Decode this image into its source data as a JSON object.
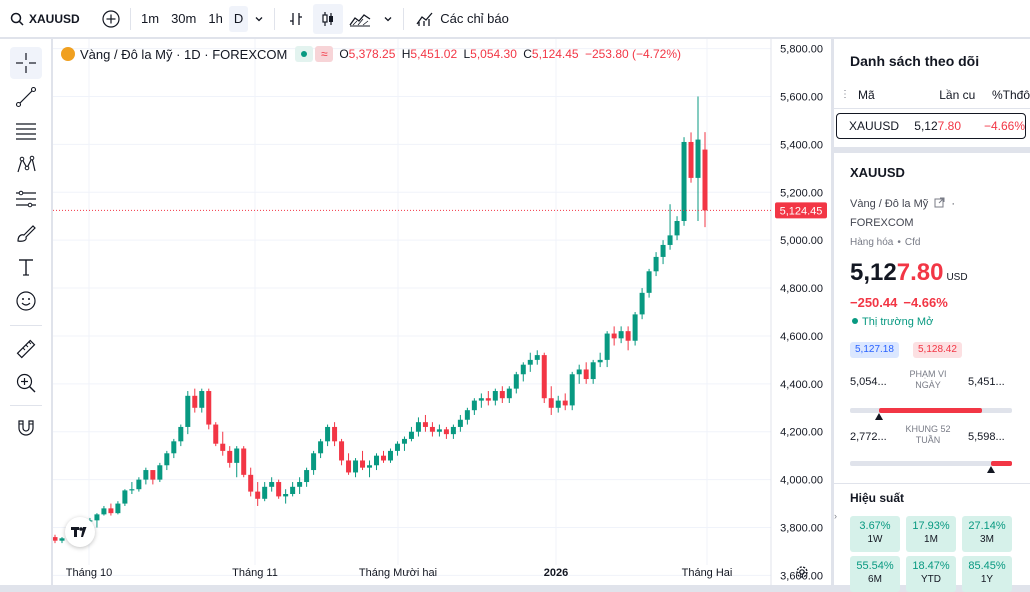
{
  "toolbar": {
    "symbol": "XAUUSD",
    "intervals": [
      "1m",
      "30m",
      "1h",
      "D"
    ],
    "active_interval": "D",
    "indicators_label": "Các chỉ báo"
  },
  "legend": {
    "title": "Vàng / Đô la Mỹ · 1D · FOREXCOM",
    "o_label": "O",
    "o": "5,378.25",
    "h_label": "H",
    "h": "5,451.02",
    "l_label": "L",
    "l": "5,054.30",
    "c_label": "C",
    "c": "5,124.45",
    "change": "−253.80 (−4.72%)"
  },
  "chart_data": {
    "type": "candlestick",
    "y_ticks": [
      "5,800.00",
      "5,600.00",
      "5,400.00",
      "5,200.00",
      "5,000.00",
      "4,800.00",
      "4,600.00",
      "4,400.00",
      "4,200.00",
      "4,000.00",
      "3,800.00",
      "3,600.00"
    ],
    "x_ticks": [
      "Tháng 10",
      "Tháng 11",
      "Tháng Mười hai",
      "2026",
      "Tháng Hai"
    ],
    "last_price_label": "5,124.45",
    "ylim": [
      3560,
      5840
    ],
    "colors": {
      "up": "#089981",
      "down": "#f23645"
    },
    "candles": [
      [
        3760,
        3770,
        3735,
        3745
      ],
      [
        3745,
        3760,
        3735,
        3755
      ],
      [
        3755,
        3790,
        3750,
        3785
      ],
      [
        3785,
        3800,
        3770,
        3790
      ],
      [
        3790,
        3830,
        3780,
        3825
      ],
      [
        3825,
        3840,
        3815,
        3830
      ],
      [
        3830,
        3860,
        3800,
        3855
      ],
      [
        3855,
        3890,
        3850,
        3880
      ],
      [
        3880,
        3900,
        3850,
        3860
      ],
      [
        3860,
        3910,
        3855,
        3900
      ],
      [
        3900,
        3960,
        3890,
        3955
      ],
      [
        3955,
        3990,
        3940,
        3960
      ],
      [
        3960,
        4010,
        3950,
        4000
      ],
      [
        4000,
        4050,
        3980,
        4040
      ],
      [
        4040,
        4020,
        3980,
        4000
      ],
      [
        4000,
        4070,
        3990,
        4060
      ],
      [
        4060,
        4120,
        4040,
        4110
      ],
      [
        4110,
        4170,
        4090,
        4160
      ],
      [
        4160,
        4230,
        4140,
        4220
      ],
      [
        4220,
        4370,
        4190,
        4350
      ],
      [
        4350,
        4380,
        4280,
        4300
      ],
      [
        4300,
        4380,
        4280,
        4370
      ],
      [
        4370,
        4380,
        4210,
        4230
      ],
      [
        4230,
        4240,
        4140,
        4150
      ],
      [
        4150,
        4200,
        4100,
        4120
      ],
      [
        4120,
        4140,
        4050,
        4070
      ],
      [
        4070,
        4140,
        4010,
        4130
      ],
      [
        4130,
        4140,
        4010,
        4020
      ],
      [
        4020,
        4050,
        3930,
        3950
      ],
      [
        3950,
        3990,
        3890,
        3920
      ],
      [
        3920,
        3990,
        3910,
        3970
      ],
      [
        3970,
        4010,
        3950,
        3990
      ],
      [
        3990,
        4000,
        3920,
        3930
      ],
      [
        3930,
        3960,
        3900,
        3940
      ],
      [
        3940,
        3990,
        3930,
        3970
      ],
      [
        3970,
        4010,
        3940,
        3990
      ],
      [
        3990,
        4050,
        3970,
        4040
      ],
      [
        4040,
        4120,
        4020,
        4110
      ],
      [
        4110,
        4170,
        4090,
        4160
      ],
      [
        4160,
        4230,
        4140,
        4220
      ],
      [
        4220,
        4240,
        4140,
        4160
      ],
      [
        4160,
        4170,
        4060,
        4080
      ],
      [
        4080,
        4110,
        4020,
        4030
      ],
      [
        4030,
        4090,
        4010,
        4080
      ],
      [
        4080,
        4120,
        4040,
        4050
      ],
      [
        4050,
        4080,
        4010,
        4060
      ],
      [
        4060,
        4110,
        4040,
        4100
      ],
      [
        4100,
        4120,
        4070,
        4080
      ],
      [
        4080,
        4130,
        4070,
        4120
      ],
      [
        4120,
        4160,
        4100,
        4150
      ],
      [
        4150,
        4180,
        4120,
        4170
      ],
      [
        4170,
        4220,
        4160,
        4200
      ],
      [
        4200,
        4260,
        4180,
        4240
      ],
      [
        4240,
        4270,
        4200,
        4220
      ],
      [
        4220,
        4240,
        4180,
        4200
      ],
      [
        4200,
        4230,
        4180,
        4210
      ],
      [
        4210,
        4220,
        4170,
        4190
      ],
      [
        4190,
        4230,
        4170,
        4220
      ],
      [
        4220,
        4270,
        4200,
        4250
      ],
      [
        4250,
        4300,
        4230,
        4290
      ],
      [
        4290,
        4340,
        4270,
        4330
      ],
      [
        4330,
        4360,
        4300,
        4340
      ],
      [
        4340,
        4370,
        4310,
        4330
      ],
      [
        4330,
        4380,
        4310,
        4370
      ],
      [
        4370,
        4390,
        4320,
        4340
      ],
      [
        4340,
        4390,
        4320,
        4380
      ],
      [
        4380,
        4450,
        4360,
        4440
      ],
      [
        4440,
        4490,
        4410,
        4480
      ],
      [
        4480,
        4530,
        4450,
        4500
      ],
      [
        4500,
        4540,
        4480,
        4520
      ],
      [
        4520,
        4530,
        4320,
        4340
      ],
      [
        4340,
        4390,
        4270,
        4300
      ],
      [
        4300,
        4350,
        4280,
        4330
      ],
      [
        4330,
        4360,
        4290,
        4310
      ],
      [
        4310,
        4450,
        4290,
        4440
      ],
      [
        4440,
        4480,
        4400,
        4460
      ],
      [
        4460,
        4490,
        4400,
        4420
      ],
      [
        4420,
        4500,
        4400,
        4490
      ],
      [
        4490,
        4530,
        4470,
        4500
      ],
      [
        4500,
        4620,
        4470,
        4610
      ],
      [
        4610,
        4640,
        4560,
        4590
      ],
      [
        4590,
        4640,
        4570,
        4620
      ],
      [
        4620,
        4640,
        4540,
        4580
      ],
      [
        4580,
        4700,
        4560,
        4690
      ],
      [
        4690,
        4800,
        4670,
        4780
      ],
      [
        4780,
        4880,
        4760,
        4870
      ],
      [
        4870,
        4950,
        4850,
        4930
      ],
      [
        4930,
        5000,
        4900,
        4980
      ],
      [
        4980,
        5150,
        4960,
        5020
      ],
      [
        5020,
        5100,
        5000,
        5080
      ],
      [
        5080,
        5430,
        5060,
        5410
      ],
      [
        5410,
        5450,
        5240,
        5260
      ],
      [
        5260,
        5600,
        5080,
        5420
      ],
      [
        5378.25,
        5451.02,
        5054.3,
        5124.45
      ]
    ]
  },
  "watchlist": {
    "title": "Danh sách theo dõi",
    "col_symbol": "Mã",
    "col_last": "Lần cu",
    "col_change": "%Thđô",
    "row_symbol": "XAUUSD",
    "row_last_a": "5,12",
    "row_last_b": "7.80",
    "row_change": "−4.66%"
  },
  "details": {
    "symbol": "XAUUSD",
    "name": "Vàng / Đô la Mỹ",
    "name_suffix": "·",
    "exchange": "FOREXCOM",
    "category": "Hàng hóa",
    "type": "Cfd",
    "price_a": "5,12",
    "price_b": "7.80",
    "currency": "USD",
    "change": "−250.44",
    "change_pct": "−4.66%",
    "market_status": "Thị trường Mở",
    "bid": "5,127.18",
    "ask": "5,128.42",
    "day_low": "5,054...",
    "day_label_1": "PHẠM VI",
    "day_label_2": "NGÀY",
    "day_high": "5,451...",
    "day_position": 0.18,
    "wk_low": "2,772...",
    "wk_label_1": "KHUNG 52",
    "wk_label_2": "TUẦN",
    "wk_high": "5,598...",
    "wk_position": 0.87,
    "perf_title": "Hiệu suất",
    "perf": [
      {
        "value": "3.67%",
        "label": "1W"
      },
      {
        "value": "17.93%",
        "label": "1M"
      },
      {
        "value": "27.14%",
        "label": "3M"
      },
      {
        "value": "55.54%",
        "label": "6M"
      },
      {
        "value": "18.47%",
        "label": "YTD"
      },
      {
        "value": "85.45%",
        "label": "1Y"
      }
    ]
  }
}
